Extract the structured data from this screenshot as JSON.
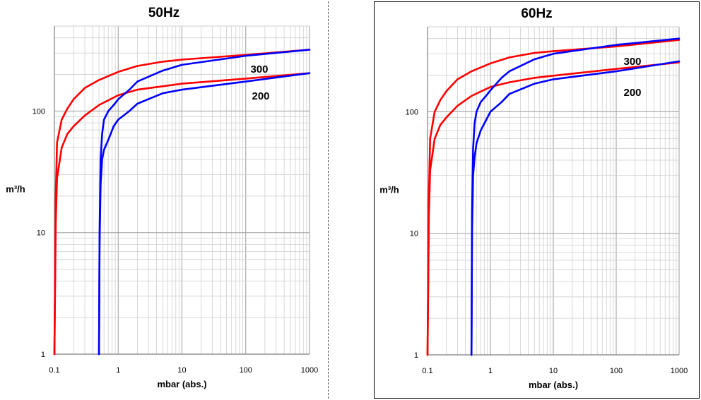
{
  "chart_data": [
    {
      "type": "line",
      "title": "50Hz",
      "xlabel": "mbar (abs.)",
      "ylabel": "m³/h",
      "xscale": "log",
      "yscale": "log",
      "xlim": [
        0.1,
        1000
      ],
      "ylim": [
        1,
        500
      ],
      "xticks": [
        "0.1",
        "1",
        "10",
        "100",
        "1000"
      ],
      "yticks": [
        "1",
        "10",
        "100"
      ],
      "grid": true,
      "curve_labels": [
        "300",
        "200"
      ],
      "series": [
        {
          "color": "#ff0000",
          "x": [
            0.1,
            0.105,
            0.11,
            0.13,
            0.16,
            0.2,
            0.3,
            0.5,
            1,
            2,
            5,
            10,
            100,
            1000
          ],
          "y": [
            1,
            20,
            55,
            85,
            105,
            125,
            155,
            180,
            210,
            235,
            255,
            265,
            290,
            320
          ]
        },
        {
          "color": "#ff0000",
          "x": [
            0.1,
            0.105,
            0.11,
            0.13,
            0.16,
            0.2,
            0.3,
            0.5,
            1,
            2,
            5,
            10,
            100,
            1000
          ],
          "y": [
            1,
            12,
            28,
            50,
            65,
            75,
            92,
            112,
            135,
            150,
            160,
            168,
            185,
            205
          ]
        },
        {
          "color": "#0000ff",
          "x": [
            0.5,
            0.51,
            0.53,
            0.56,
            0.6,
            0.7,
            0.85,
            1,
            1.5,
            2,
            5,
            10,
            100,
            1000
          ],
          "y": [
            1,
            10,
            40,
            65,
            85,
            100,
            112,
            125,
            150,
            175,
            215,
            240,
            285,
            320
          ]
        },
        {
          "color": "#0000ff",
          "x": [
            0.5,
            0.51,
            0.53,
            0.56,
            0.6,
            0.7,
            0.85,
            1,
            1.5,
            2,
            5,
            10,
            100,
            1000
          ],
          "y": [
            1,
            8,
            25,
            40,
            48,
            58,
            75,
            85,
            100,
            115,
            140,
            150,
            175,
            205
          ]
        }
      ]
    },
    {
      "type": "line",
      "title": "60Hz",
      "xlabel": "mbar (abs.)",
      "ylabel": "m³/h",
      "xscale": "log",
      "yscale": "log",
      "xlim": [
        0.1,
        1000
      ],
      "ylim": [
        1,
        500
      ],
      "xticks": [
        "0.1",
        "1",
        "10",
        "100",
        "1000"
      ],
      "yticks": [
        "1",
        "10",
        "100"
      ],
      "grid": true,
      "curve_labels": [
        "300",
        "200"
      ],
      "series": [
        {
          "color": "#ff0000",
          "x": [
            0.1,
            0.105,
            0.11,
            0.13,
            0.16,
            0.2,
            0.3,
            0.5,
            1,
            2,
            5,
            10,
            100,
            1000
          ],
          "y": [
            1,
            20,
            60,
            100,
            125,
            148,
            185,
            215,
            250,
            280,
            305,
            315,
            345,
            390
          ]
        },
        {
          "color": "#ff0000",
          "x": [
            0.1,
            0.105,
            0.11,
            0.13,
            0.16,
            0.2,
            0.3,
            0.5,
            1,
            2,
            5,
            10,
            100,
            1000
          ],
          "y": [
            1,
            14,
            33,
            60,
            78,
            90,
            112,
            135,
            160,
            175,
            190,
            198,
            225,
            255
          ]
        },
        {
          "color": "#0000ff",
          "x": [
            0.5,
            0.51,
            0.53,
            0.56,
            0.6,
            0.7,
            0.85,
            1,
            1.5,
            2,
            5,
            10,
            100,
            1000
          ],
          "y": [
            1,
            15,
            50,
            80,
            100,
            120,
            135,
            150,
            190,
            215,
            270,
            300,
            355,
            400
          ]
        },
        {
          "color": "#0000ff",
          "x": [
            0.5,
            0.51,
            0.53,
            0.56,
            0.6,
            0.7,
            0.85,
            1,
            1.5,
            2,
            5,
            10,
            100,
            1000
          ],
          "y": [
            1,
            10,
            30,
            42,
            55,
            70,
            85,
            100,
            120,
            140,
            170,
            185,
            215,
            260
          ]
        }
      ]
    }
  ]
}
